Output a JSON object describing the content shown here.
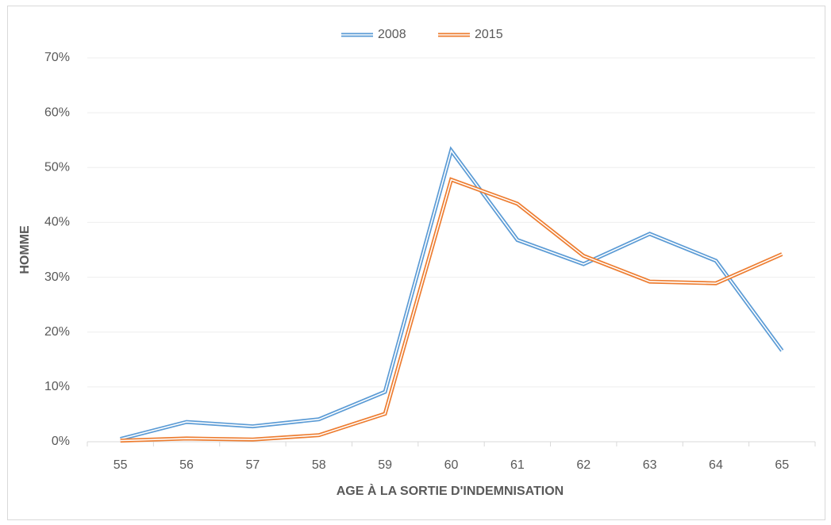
{
  "chart_data": {
    "type": "line",
    "x_label": "AGE À LA SORTIE D'INDEMNISATION",
    "y_label": "HOMME",
    "categories": [
      "55",
      "56",
      "57",
      "58",
      "59",
      "60",
      "61",
      "62",
      "63",
      "64",
      "65"
    ],
    "series": [
      {
        "name": "2008",
        "color": "#5b9bd5",
        "values": [
          0.5,
          3.6,
          2.8,
          4.1,
          9.1,
          53.1,
          36.8,
          32.4,
          37.9,
          33,
          16.6
        ]
      },
      {
        "name": "2015",
        "color": "#ed7d31",
        "values": [
          0.2,
          0.6,
          0.4,
          1.2,
          5.1,
          47.8,
          43.4,
          33.9,
          29.2,
          28.9,
          34.2
        ]
      }
    ],
    "ylim": [
      0,
      70
    ],
    "yticks": [
      {
        "value": 0,
        "label": "0%"
      },
      {
        "value": 10,
        "label": "10%"
      },
      {
        "value": 20,
        "label": "20%"
      },
      {
        "value": 30,
        "label": "30%"
      },
      {
        "value": 40,
        "label": "40%"
      },
      {
        "value": 50,
        "label": "50%"
      },
      {
        "value": 60,
        "label": "60%"
      },
      {
        "value": 70,
        "label": "70%"
      }
    ],
    "grid": true,
    "legend": "top"
  }
}
